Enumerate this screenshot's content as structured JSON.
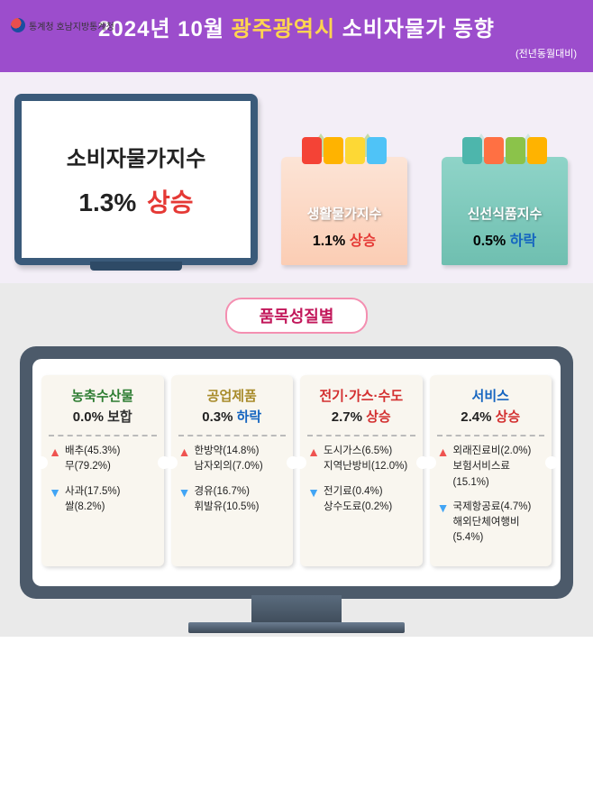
{
  "header": {
    "year_month": "2024년 10월",
    "region": "광주광역시",
    "subject": "소비자물가 동향",
    "subtitle": "(전년동월대비)",
    "logo_label": "통계청 호남지방통계청"
  },
  "hero": {
    "main_index": {
      "label": "소비자물가지수",
      "pct": "1.3%",
      "direction_label": "상승",
      "direction": "up"
    },
    "living_index": {
      "label": "생활물가지수",
      "pct": "1.1%",
      "direction_label": "상승",
      "direction": "up",
      "bag_color": "pink",
      "foods": [
        "#f44336",
        "#ffb300",
        "#fdd835",
        "#4fc3f7"
      ]
    },
    "fresh_index": {
      "label": "신선식품지수",
      "pct": "0.5%",
      "direction_label": "하락",
      "direction": "down",
      "bag_color": "teal",
      "foods": [
        "#4db6ac",
        "#ff7043",
        "#8bc34a",
        "#ffb300"
      ]
    }
  },
  "section2": {
    "title": "품목성질별",
    "categories": [
      {
        "name": "농축수산물",
        "name_color": "c-green",
        "pct": "0.0%",
        "direction_label": "보합",
        "direction": "flat",
        "up_items": [
          "배추(45.3%)",
          "무(79.2%)"
        ],
        "down_items": [
          "사과(17.5%)",
          "쌀(8.2%)"
        ]
      },
      {
        "name": "공업제품",
        "name_color": "c-olive",
        "pct": "0.3%",
        "direction_label": "하락",
        "direction": "down",
        "up_items": [
          "한방약(14.8%)",
          "남자외의(7.0%)"
        ],
        "down_items": [
          "경유(16.7%)",
          "휘발유(10.5%)"
        ]
      },
      {
        "name": "전기·가스·수도",
        "name_color": "c-red",
        "pct": "2.7%",
        "direction_label": "상승",
        "direction": "up",
        "up_items": [
          "도시가스(6.5%)",
          "지역난방비(12.0%)"
        ],
        "down_items": [
          "전기료(0.4%)",
          "상수도료(0.2%)"
        ]
      },
      {
        "name": "서비스",
        "name_color": "c-blue",
        "pct": "2.4%",
        "direction_label": "상승",
        "direction": "up",
        "up_items": [
          "외래진료비(2.0%)",
          "보험서비스료(15.1%)"
        ],
        "down_items": [
          "국제항공료(4.7%)",
          "해외단체여행비(5.4%)"
        ]
      }
    ]
  }
}
